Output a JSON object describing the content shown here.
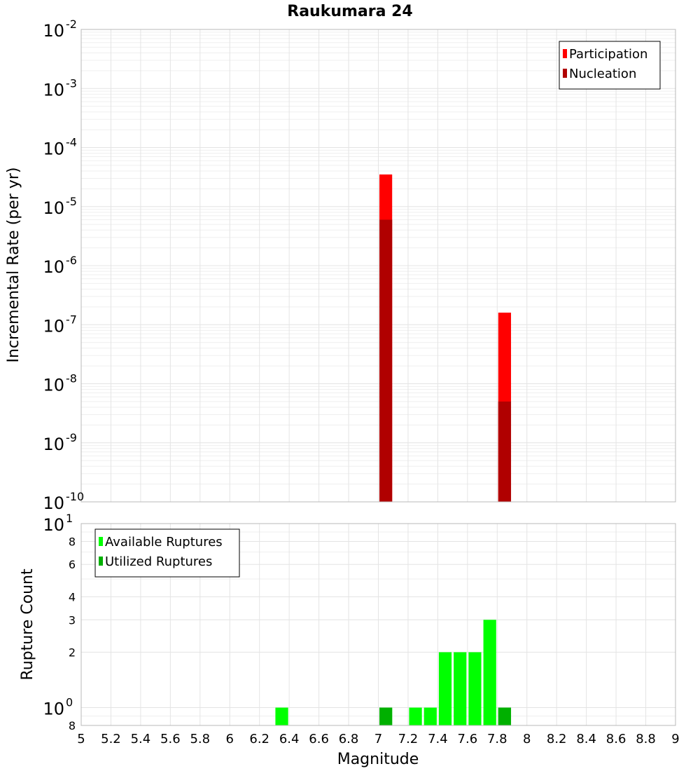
{
  "title": "Raukumara 24",
  "chart_data": [
    {
      "type": "bar",
      "panel": "top",
      "ylabel": "Incremental Rate (per yr)",
      "yscale": "log",
      "ylim": [
        1e-10,
        0.01
      ],
      "ytick_labels": [
        {
          "base": "10",
          "exp": "-2",
          "value": 0.01
        },
        {
          "base": "10",
          "exp": "-3",
          "value": 0.001
        },
        {
          "base": "10",
          "exp": "-4",
          "value": 0.0001
        },
        {
          "base": "10",
          "exp": "-5",
          "value": 1e-05
        },
        {
          "base": "10",
          "exp": "-6",
          "value": 1e-06
        },
        {
          "base": "10",
          "exp": "-7",
          "value": 1e-07
        },
        {
          "base": "10",
          "exp": "-8",
          "value": 1e-08
        },
        {
          "base": "10",
          "exp": "-9",
          "value": 1e-09
        },
        {
          "base": "10",
          "exp": "-10",
          "value": 1e-10
        }
      ],
      "bin_width": 0.1,
      "legend_placement": "top-right",
      "series": [
        {
          "name": "Participation",
          "color": "#ff0000",
          "x": [
            7.05,
            7.85
          ],
          "values": [
            3.5e-05,
            1.6e-07
          ]
        },
        {
          "name": "Nucleation",
          "color": "#b00000",
          "x": [
            7.05,
            7.85
          ],
          "values": [
            6e-06,
            5e-09
          ]
        }
      ]
    },
    {
      "type": "bar",
      "panel": "bottom",
      "xlabel": "Magnitude",
      "ylabel": "Rupture Count",
      "yscale": "log",
      "ylim": [
        0.8,
        10
      ],
      "ytick_labels": [
        {
          "base": "10",
          "exp": "1",
          "value": 10
        },
        {
          "base": "8",
          "exp": "",
          "value": 8
        },
        {
          "base": "6",
          "exp": "",
          "value": 6
        },
        {
          "base": "4",
          "exp": "",
          "value": 4
        },
        {
          "base": "3",
          "exp": "",
          "value": 3
        },
        {
          "base": "2",
          "exp": "",
          "value": 2
        },
        {
          "base": "10",
          "exp": "0",
          "value": 1
        },
        {
          "base": "8",
          "exp": "",
          "value": 0.8
        }
      ],
      "xlim": [
        5,
        9
      ],
      "xticks": [
        "5",
        "5.2",
        "5.4",
        "5.6",
        "5.8",
        "6",
        "6.2",
        "6.4",
        "6.6",
        "6.8",
        "7",
        "7.2",
        "7.4",
        "7.6",
        "7.8",
        "8",
        "8.2",
        "8.4",
        "8.6",
        "8.8",
        "9"
      ],
      "bin_width": 0.1,
      "legend_placement": "top-left",
      "series": [
        {
          "name": "Available Ruptures",
          "color": "#00ff00",
          "x": [
            6.35,
            7.05,
            7.25,
            7.35,
            7.45,
            7.55,
            7.65,
            7.75,
            7.85
          ],
          "values": [
            1,
            1,
            1,
            1,
            2,
            2,
            2,
            3,
            1
          ]
        },
        {
          "name": "Utilized Ruptures",
          "color": "#00b000",
          "x": [
            7.05,
            7.85
          ],
          "values": [
            1,
            1
          ]
        }
      ]
    }
  ]
}
